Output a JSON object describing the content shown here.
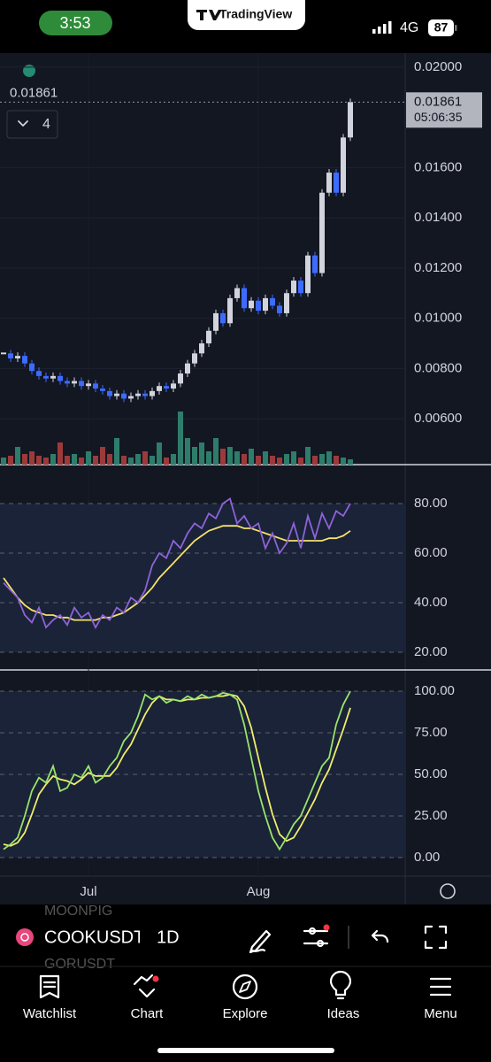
{
  "status_bar": {
    "time": "3:53",
    "app": "TradingView",
    "network": "4G",
    "battery": "87"
  },
  "chart_data": [
    {
      "type": "candlestick",
      "last_price": 0.01861,
      "countdown": "05:06:35",
      "indicator_count": 4,
      "up_color": "#d1d4dc",
      "down_color": "#3d6bff",
      "volume_up_color": "#2e7d6b",
      "volume_down_color": "#9c3a3a",
      "values": [
        0.0086,
        0.0084,
        0.0085,
        0.0082,
        0.0079,
        0.0077,
        0.0076,
        0.0077,
        0.0075,
        0.0074,
        0.0075,
        0.0073,
        0.0074,
        0.0072,
        0.0071,
        0.0069,
        0.007,
        0.0068,
        0.0069,
        0.007,
        0.0069,
        0.0071,
        0.0073,
        0.0072,
        0.0074,
        0.0078,
        0.0082,
        0.0086,
        0.009,
        0.0095,
        0.0102,
        0.0098,
        0.0108,
        0.0112,
        0.0104,
        0.0107,
        0.0103,
        0.0108,
        0.0105,
        0.0102,
        0.011,
        0.0115,
        0.011,
        0.0125,
        0.0118,
        0.015,
        0.0158,
        0.015,
        0.0172,
        0.01861
      ],
      "volume": [
        8,
        10,
        20,
        12,
        15,
        10,
        8,
        12,
        25,
        10,
        12,
        8,
        15,
        10,
        20,
        12,
        30,
        10,
        8,
        12,
        15,
        10,
        25,
        8,
        12,
        60,
        30,
        20,
        25,
        15,
        30,
        18,
        20,
        15,
        12,
        18,
        10,
        15,
        10,
        8,
        12,
        15,
        8,
        20,
        10,
        12,
        15,
        10,
        8,
        6
      ],
      "ylim": [
        0.00417,
        0.02056
      ],
      "yticks": [
        {
          "value": 0.02,
          "label": "0.02000"
        },
        {
          "value": 0.016,
          "label": "0.01600"
        },
        {
          "value": 0.014,
          "label": "0.01400"
        },
        {
          "value": 0.012,
          "label": "0.01200"
        },
        {
          "value": 0.01,
          "label": "0.01000"
        },
        {
          "value": 0.008,
          "label": "0.00800"
        },
        {
          "value": 0.006,
          "label": "0.00600"
        }
      ],
      "xticks": [
        {
          "value": 12,
          "label": "Jul"
        },
        {
          "value": 36,
          "label": "Aug"
        }
      ],
      "grid": true
    },
    {
      "type": "line",
      "series": [
        {
          "color": "#8e63d8",
          "values": [
            48,
            45,
            42,
            35,
            32,
            38,
            30,
            33,
            35,
            31,
            38,
            34,
            36,
            30,
            35,
            33,
            38,
            36,
            42,
            40,
            45,
            55,
            60,
            58,
            65,
            62,
            68,
            72,
            70,
            76,
            74,
            80,
            82,
            72,
            75,
            70,
            72,
            62,
            68,
            60,
            64,
            72,
            62,
            75,
            66,
            76,
            70,
            77,
            75,
            80
          ]
        },
        {
          "color": "#f5e16b",
          "values": [
            50,
            46,
            42,
            39,
            37,
            36,
            35,
            35,
            34,
            34,
            33,
            33,
            33,
            33,
            34,
            34,
            35,
            36,
            38,
            40,
            43,
            46,
            50,
            53,
            56,
            59,
            62,
            65,
            67,
            69,
            70,
            71,
            71,
            71,
            70,
            70,
            69,
            68,
            67,
            66,
            65,
            65,
            65,
            65,
            65,
            65,
            66,
            66,
            67,
            69
          ]
        }
      ],
      "ylim": [
        12.86,
        93.93
      ],
      "yticks": [
        {
          "value": 80,
          "label": "80.00"
        },
        {
          "value": 60,
          "label": "60.00"
        },
        {
          "value": 40,
          "label": "40.00"
        },
        {
          "value": 20,
          "label": "20.00"
        }
      ]
    },
    {
      "type": "line",
      "series": [
        {
          "color": "#9be36b",
          "values": [
            5,
            8,
            12,
            25,
            40,
            48,
            45,
            55,
            40,
            42,
            50,
            48,
            55,
            45,
            48,
            55,
            60,
            70,
            75,
            85,
            98,
            95,
            97,
            93,
            95,
            94,
            97,
            95,
            98,
            96,
            97,
            99,
            98,
            95,
            80,
            60,
            40,
            25,
            12,
            5,
            12,
            20,
            25,
            35,
            45,
            55,
            60,
            80,
            92,
            100
          ]
        },
        {
          "color": "#f0ee6a",
          "values": [
            8,
            7,
            9,
            15,
            26,
            38,
            44,
            49,
            47,
            46,
            44,
            47,
            51,
            49,
            49,
            49,
            54,
            62,
            68,
            77,
            86,
            93,
            97,
            95,
            95,
            94,
            95,
            95,
            96,
            96,
            97,
            97,
            98,
            97,
            91,
            78,
            60,
            42,
            26,
            14,
            10,
            12,
            19,
            27,
            35,
            45,
            53,
            65,
            77,
            90
          ]
        }
      ],
      "ylim": [
        -11.17,
        111.17
      ],
      "yticks": [
        {
          "value": 100,
          "label": "100.00"
        },
        {
          "value": 75,
          "label": "75.00"
        },
        {
          "value": 50,
          "label": "50.00"
        },
        {
          "value": 25,
          "label": "25.00"
        },
        {
          "value": 0,
          "label": "0.00"
        }
      ]
    }
  ],
  "toolbar": {
    "symbol": "COOKUSDT",
    "interval": "1D",
    "ghost_symbols": [
      "MOONPIG",
      "GORUSDT"
    ]
  },
  "nav": [
    "Watchlist",
    "Chart",
    "Explore",
    "Ideas",
    "Menu"
  ]
}
